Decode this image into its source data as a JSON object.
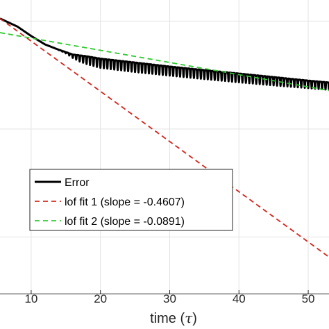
{
  "chart_data": {
    "type": "line",
    "title": "",
    "xlabel": "time",
    "xlabel_symbol": "τ",
    "ylabel": "",
    "xlim": [
      5.5,
      53
    ],
    "x_ticks": [
      10,
      20,
      30,
      40,
      50
    ],
    "x_tick_labels": [
      "10",
      "20",
      "30",
      "40",
      "50"
    ],
    "y_tick_labels": [],
    "log_y": true,
    "grid": true,
    "legend_position": "lower-left",
    "series": [
      {
        "name": "Error",
        "style": "solid",
        "color": "#000000",
        "oscillation_period": 0.5,
        "x": [
          5.5,
          8,
          10,
          12,
          14,
          15,
          16,
          18,
          20,
          25,
          30,
          35,
          40,
          45,
          50,
          53
        ],
        "y_upper": [
          0.84,
          0.72,
          0.6,
          0.51,
          0.46,
          0.44,
          0.42,
          0.406,
          0.388,
          0.36,
          0.333,
          0.311,
          0.291,
          0.272,
          0.254,
          0.245
        ],
        "y_lower": [
          0.84,
          0.72,
          0.6,
          0.51,
          0.45,
          0.42,
          0.385,
          0.35,
          0.325,
          0.3,
          0.28,
          0.262,
          0.246,
          0.232,
          0.22,
          0.213
        ]
      },
      {
        "name": "lof fit 1 (slope = -0.4607)",
        "style": "dashed",
        "color": "#d42a22",
        "x": [
          5.5,
          53
        ],
        "y": [
          0.84,
          0.0085
        ]
      },
      {
        "name": "lof fit 2 (slope = -0.0891)",
        "style": "dashed",
        "color": "#33cc33",
        "x": [
          5.5,
          53
        ],
        "y": [
          0.64,
          0.21
        ]
      }
    ]
  }
}
